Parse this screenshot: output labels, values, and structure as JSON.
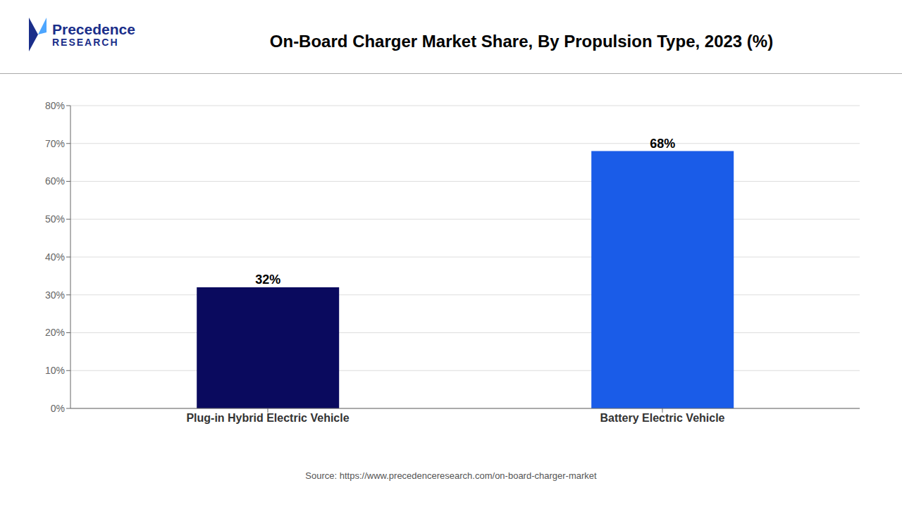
{
  "chart_data": {
    "type": "bar",
    "title": "On-Board Charger Market Share, By Propulsion Type, 2023 (%)",
    "categories": [
      "Plug-in Hybrid Electric Vehicle",
      "Battery Electric Vehicle"
    ],
    "values": [
      32,
      68
    ],
    "value_labels": [
      "32%",
      "68%"
    ],
    "colors": [
      "#0a0a5e",
      "#1a5ce8"
    ],
    "data_labels": true,
    "ylim": [
      0,
      80
    ],
    "yticks": [
      {
        "value": 0,
        "label": "0%"
      },
      {
        "value": 10,
        "label": "10%"
      },
      {
        "value": 20,
        "label": "20%"
      },
      {
        "value": 30,
        "label": "30%"
      },
      {
        "value": 40,
        "label": "40%"
      },
      {
        "value": 50,
        "label": "50%"
      },
      {
        "value": 60,
        "label": "60%"
      },
      {
        "value": 70,
        "label": "70%"
      },
      {
        "value": 80,
        "label": "80%"
      }
    ],
    "grid": true,
    "annotations": [
      "Precedence",
      "RESEARCH",
      "Source: https://www.precedenceresearch.com/on-board-charger-market"
    ]
  }
}
